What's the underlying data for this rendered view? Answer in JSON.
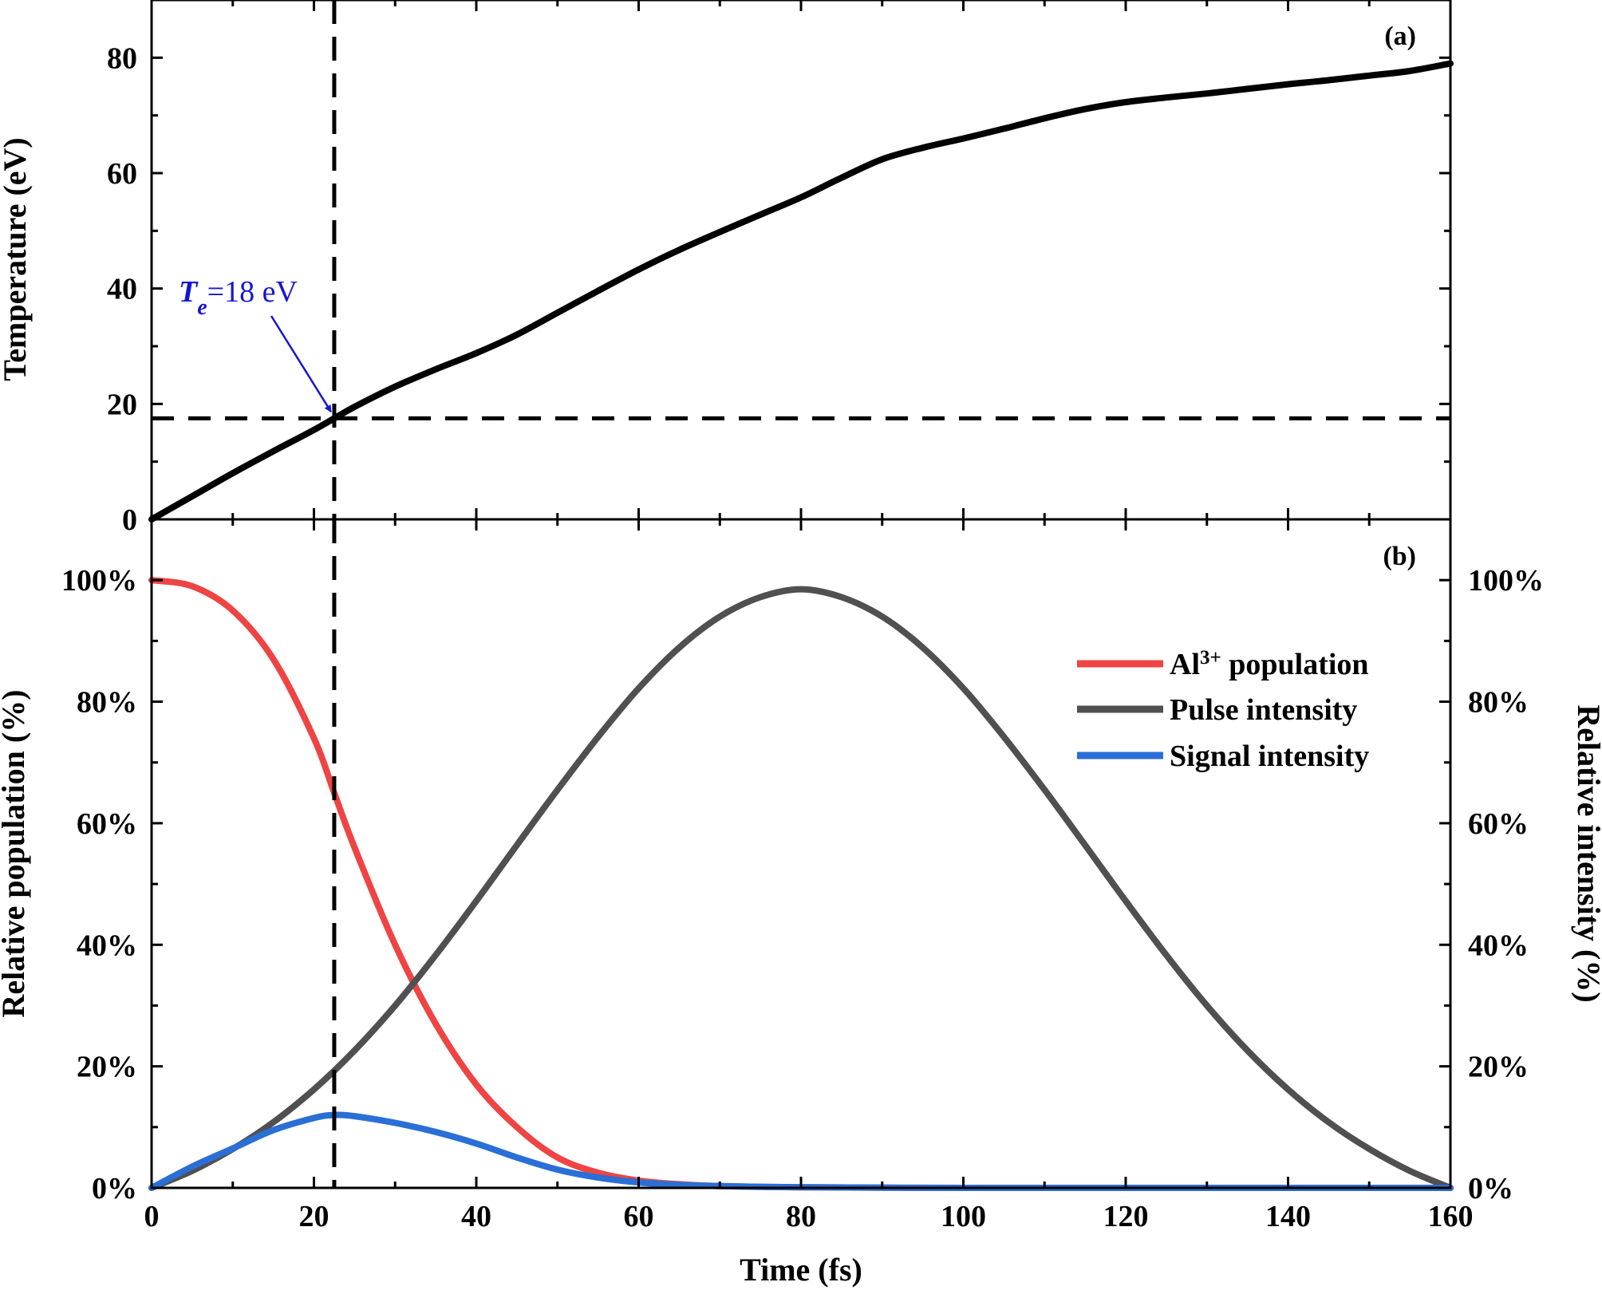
{
  "chart_data": [
    {
      "panel": "(a)",
      "type": "line",
      "title": "",
      "xlabel": "",
      "ylabel": "Temperature (eV)",
      "xlim": [
        0,
        160
      ],
      "ylim": [
        0,
        90
      ],
      "xticks": [
        0,
        20,
        40,
        60,
        80,
        100,
        120,
        140,
        160
      ],
      "yticks": [
        0,
        20,
        40,
        60,
        80
      ],
      "ytick_labels": [
        "0",
        "20",
        "40",
        "60",
        "80"
      ],
      "series": [
        {
          "name": "Temperature",
          "color": "#000000",
          "x": [
            0,
            5,
            10,
            15,
            20,
            22.5,
            25,
            30,
            35,
            40,
            45,
            50,
            55,
            60,
            65,
            70,
            75,
            80,
            85,
            90,
            95,
            100,
            105,
            110,
            115,
            120,
            125,
            130,
            135,
            140,
            145,
            150,
            155,
            160
          ],
          "y": [
            0,
            4,
            8,
            11.8,
            15.5,
            17.5,
            19.5,
            23,
            26,
            28.8,
            32,
            35.8,
            39.6,
            43.3,
            46.7,
            49.8,
            52.8,
            55.8,
            59.2,
            62.4,
            64.4,
            66,
            67.7,
            69.5,
            71.1,
            72.3,
            73.1,
            73.8,
            74.6,
            75.4,
            76.1,
            76.9,
            77.7,
            79
          ]
        }
      ],
      "reference_lines": [
        {
          "orientation": "horizontal",
          "y": 17.5
        },
        {
          "orientation": "vertical",
          "x": 22.5
        }
      ],
      "annotation": {
        "prefix": "T",
        "subscript": "e",
        "suffix": "=18  eV",
        "arrow_to": [
          22.5,
          17.8
        ],
        "color": "#1515d6"
      }
    },
    {
      "panel": "(b)",
      "type": "line",
      "title": "",
      "xlabel": "Time (fs)",
      "ylabel": "Relative population (%)",
      "ylabel_right": "Relative intensity (%)",
      "xlim": [
        0,
        160
      ],
      "ylim": [
        0,
        110
      ],
      "xticks": [
        0,
        20,
        40,
        60,
        80,
        100,
        120,
        140,
        160
      ],
      "xtick_labels": [
        "0",
        "20",
        "40",
        "60",
        "80",
        "100",
        "120",
        "140",
        "160"
      ],
      "yticks": [
        0,
        20,
        40,
        60,
        80,
        100
      ],
      "ytick_labels": [
        "0%",
        "20%",
        "40%",
        "60%",
        "80%",
        "100%"
      ],
      "ytick_labels_right": [
        "0%",
        "20%",
        "40%",
        "60%",
        "80%",
        "100%"
      ],
      "legend_position": "upper-right",
      "legend": [
        {
          "label_main": "Al",
          "label_sup": "3+",
          "label_rest": " population",
          "color": "#ef4444"
        },
        {
          "label_main": "Pulse intensity",
          "label_sup": "",
          "label_rest": "",
          "color": "#505050"
        },
        {
          "label_main": "Signal intensity",
          "label_sup": "",
          "label_rest": "",
          "color": "#2a6fd6"
        }
      ],
      "series": [
        {
          "name": "Al3+ population",
          "color": "#ef4444",
          "x": [
            0,
            5,
            10,
            15,
            20,
            22.5,
            25,
            30,
            35,
            40,
            45,
            50,
            55,
            60,
            65,
            70,
            80,
            100,
            120,
            140,
            160
          ],
          "y": [
            100,
            99,
            95,
            87,
            74,
            65,
            56,
            40,
            27,
            17,
            10,
            5,
            2.5,
            1.2,
            0.6,
            0.3,
            0.1,
            0,
            0,
            0,
            0
          ]
        },
        {
          "name": "Pulse intensity",
          "color": "#505050",
          "x": [
            0,
            5,
            10,
            15,
            20,
            25,
            30,
            35,
            40,
            45,
            50,
            55,
            60,
            65,
            70,
            75,
            80,
            85,
            90,
            95,
            100,
            105,
            110,
            115,
            120,
            125,
            130,
            135,
            140,
            145,
            150,
            155,
            160
          ],
          "y": [
            0,
            2.8,
            6.4,
            10.8,
            16.2,
            22.6,
            30.0,
            38.3,
            47.2,
            56.4,
            65.5,
            74.2,
            82.2,
            88.9,
            94.0,
            97.2,
            98.5,
            97.2,
            94.0,
            88.9,
            82.2,
            74.2,
            65.5,
            56.4,
            47.2,
            38.3,
            30.0,
            22.6,
            16.2,
            10.8,
            6.4,
            2.8,
            0
          ]
        },
        {
          "name": "Signal intensity",
          "color": "#2a6fd6",
          "x": [
            0,
            5,
            10,
            15,
            20,
            22.5,
            25,
            30,
            35,
            40,
            45,
            50,
            55,
            60,
            65,
            70,
            80,
            100,
            120,
            140,
            160
          ],
          "y": [
            0,
            3.5,
            6.5,
            9.5,
            11.5,
            12,
            11.8,
            10.7,
            9.2,
            7.3,
            5.0,
            3.0,
            1.7,
            0.9,
            0.5,
            0.3,
            0.1,
            0,
            0,
            0,
            0
          ]
        }
      ],
      "reference_lines": [
        {
          "orientation": "vertical",
          "x": 22.5
        }
      ]
    }
  ]
}
